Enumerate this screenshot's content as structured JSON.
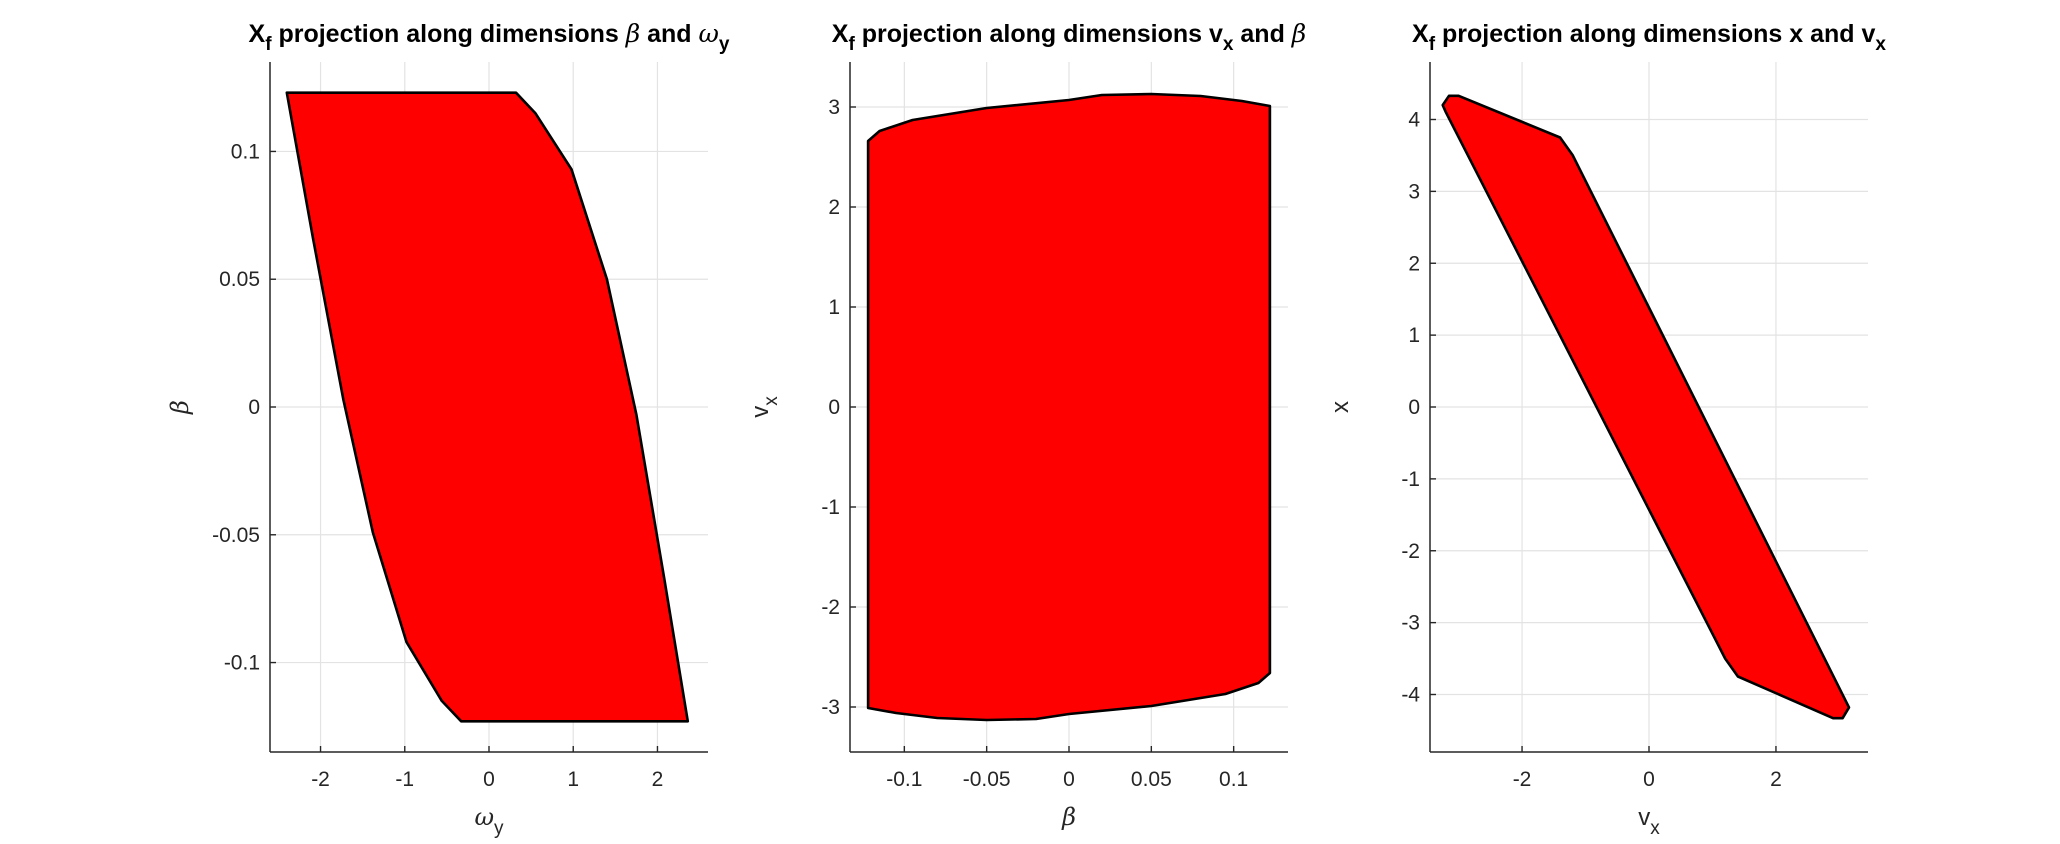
{
  "chart_data": [
    {
      "type": "area",
      "title": {
        "main": "X",
        "sub": "f",
        "mid": " projection along dimensions ",
        "sym1": "β",
        "and": " and ",
        "sym2": "ω",
        "sym2sub": "y"
      },
      "xlabel": {
        "main": "ω",
        "sub": "y"
      },
      "ylabel": {
        "main": "β",
        "sub": ""
      },
      "xlim": [
        -2.6,
        2.6
      ],
      "ylim": [
        -0.135,
        0.135
      ],
      "xticks": [
        -2,
        -1,
        0,
        1,
        2
      ],
      "xtick_labels": [
        "-2",
        "-1",
        "0",
        "1",
        "2"
      ],
      "yticks": [
        -0.1,
        -0.05,
        0,
        0.05,
        0.1
      ],
      "ytick_labels": [
        "-0.1",
        "-0.05",
        "0",
        "0.05",
        "0.1"
      ],
      "grid": true,
      "fill_color": "#ff0000",
      "edge_color": "#000000",
      "polygon": [
        [
          -2.4,
          0.123
        ],
        [
          0.32,
          0.123
        ],
        [
          0.55,
          0.115
        ],
        [
          0.98,
          0.093
        ],
        [
          1.4,
          0.05
        ],
        [
          1.75,
          -0.003
        ],
        [
          2.08,
          -0.067
        ],
        [
          2.36,
          -0.123
        ],
        [
          -0.33,
          -0.123
        ],
        [
          -0.56,
          -0.115
        ],
        [
          -0.98,
          -0.092
        ],
        [
          -1.38,
          -0.049
        ],
        [
          -1.73,
          0.003
        ],
        [
          -2.09,
          0.066
        ]
      ]
    },
    {
      "type": "area",
      "title": {
        "main": "X",
        "sub": "f",
        "mid": " projection along dimensions ",
        "sym1": "v",
        "sym1sub": "x",
        "and": " and ",
        "sym2": "β"
      },
      "xlabel": {
        "main": "β",
        "sub": ""
      },
      "ylabel": {
        "main": "v",
        "sub": "x"
      },
      "xlim": [
        -0.133,
        0.133
      ],
      "ylim": [
        -3.45,
        3.45
      ],
      "xticks": [
        -0.1,
        -0.05,
        0,
        0.05,
        0.1
      ],
      "xtick_labels": [
        "-0.1",
        "-0.05",
        "0",
        "0.05",
        "0.1"
      ],
      "yticks": [
        -3,
        -2,
        -1,
        0,
        1,
        2,
        3
      ],
      "ytick_labels": [
        "-3",
        "-2",
        "-1",
        "0",
        "1",
        "2",
        "3"
      ],
      "grid": true,
      "fill_color": "#ff0000",
      "edge_color": "#000000",
      "polygon": [
        [
          -0.122,
          2.66
        ],
        [
          -0.115,
          2.76
        ],
        [
          -0.095,
          2.87
        ],
        [
          -0.05,
          2.99
        ],
        [
          0.0,
          3.07
        ],
        [
          0.02,
          3.12
        ],
        [
          0.05,
          3.13
        ],
        [
          0.08,
          3.11
        ],
        [
          0.105,
          3.06
        ],
        [
          0.122,
          3.01
        ],
        [
          0.122,
          -2.66
        ],
        [
          0.115,
          -2.76
        ],
        [
          0.095,
          -2.87
        ],
        [
          0.05,
          -2.99
        ],
        [
          0.0,
          -3.07
        ],
        [
          -0.02,
          -3.12
        ],
        [
          -0.05,
          -3.13
        ],
        [
          -0.08,
          -3.11
        ],
        [
          -0.105,
          -3.06
        ],
        [
          -0.122,
          -3.01
        ]
      ]
    },
    {
      "type": "area",
      "title": {
        "main": "X",
        "sub": "f",
        "mid": " projection along dimensions x and ",
        "sym1": "",
        "and": "",
        "sym2": "v",
        "sym2sub": "x"
      },
      "xlabel": {
        "main": "v",
        "sub": "x"
      },
      "ylabel": {
        "main": "x",
        "sub": ""
      },
      "xlim": [
        -3.45,
        3.45
      ],
      "ylim": [
        -4.8,
        4.8
      ],
      "xticks": [
        -2,
        0,
        2
      ],
      "xtick_labels": [
        "-2",
        "0",
        "2"
      ],
      "yticks": [
        -4,
        -3,
        -2,
        -1,
        0,
        1,
        2,
        3,
        4
      ],
      "ytick_labels": [
        "-4",
        "-3",
        "-2",
        "-1",
        "0",
        "1",
        "2",
        "3",
        "4"
      ],
      "grid": true,
      "fill_color": "#ff0000",
      "edge_color": "#000000",
      "polygon": [
        [
          -3.25,
          4.2
        ],
        [
          -3.15,
          4.33
        ],
        [
          -3.0,
          4.33
        ],
        [
          -1.4,
          3.75
        ],
        [
          -1.2,
          3.5
        ],
        [
          3.15,
          -4.18
        ],
        [
          3.05,
          -4.33
        ],
        [
          2.9,
          -4.33
        ],
        [
          1.4,
          -3.75
        ],
        [
          1.2,
          -3.5
        ],
        [
          -3.2,
          4.1
        ]
      ]
    }
  ]
}
